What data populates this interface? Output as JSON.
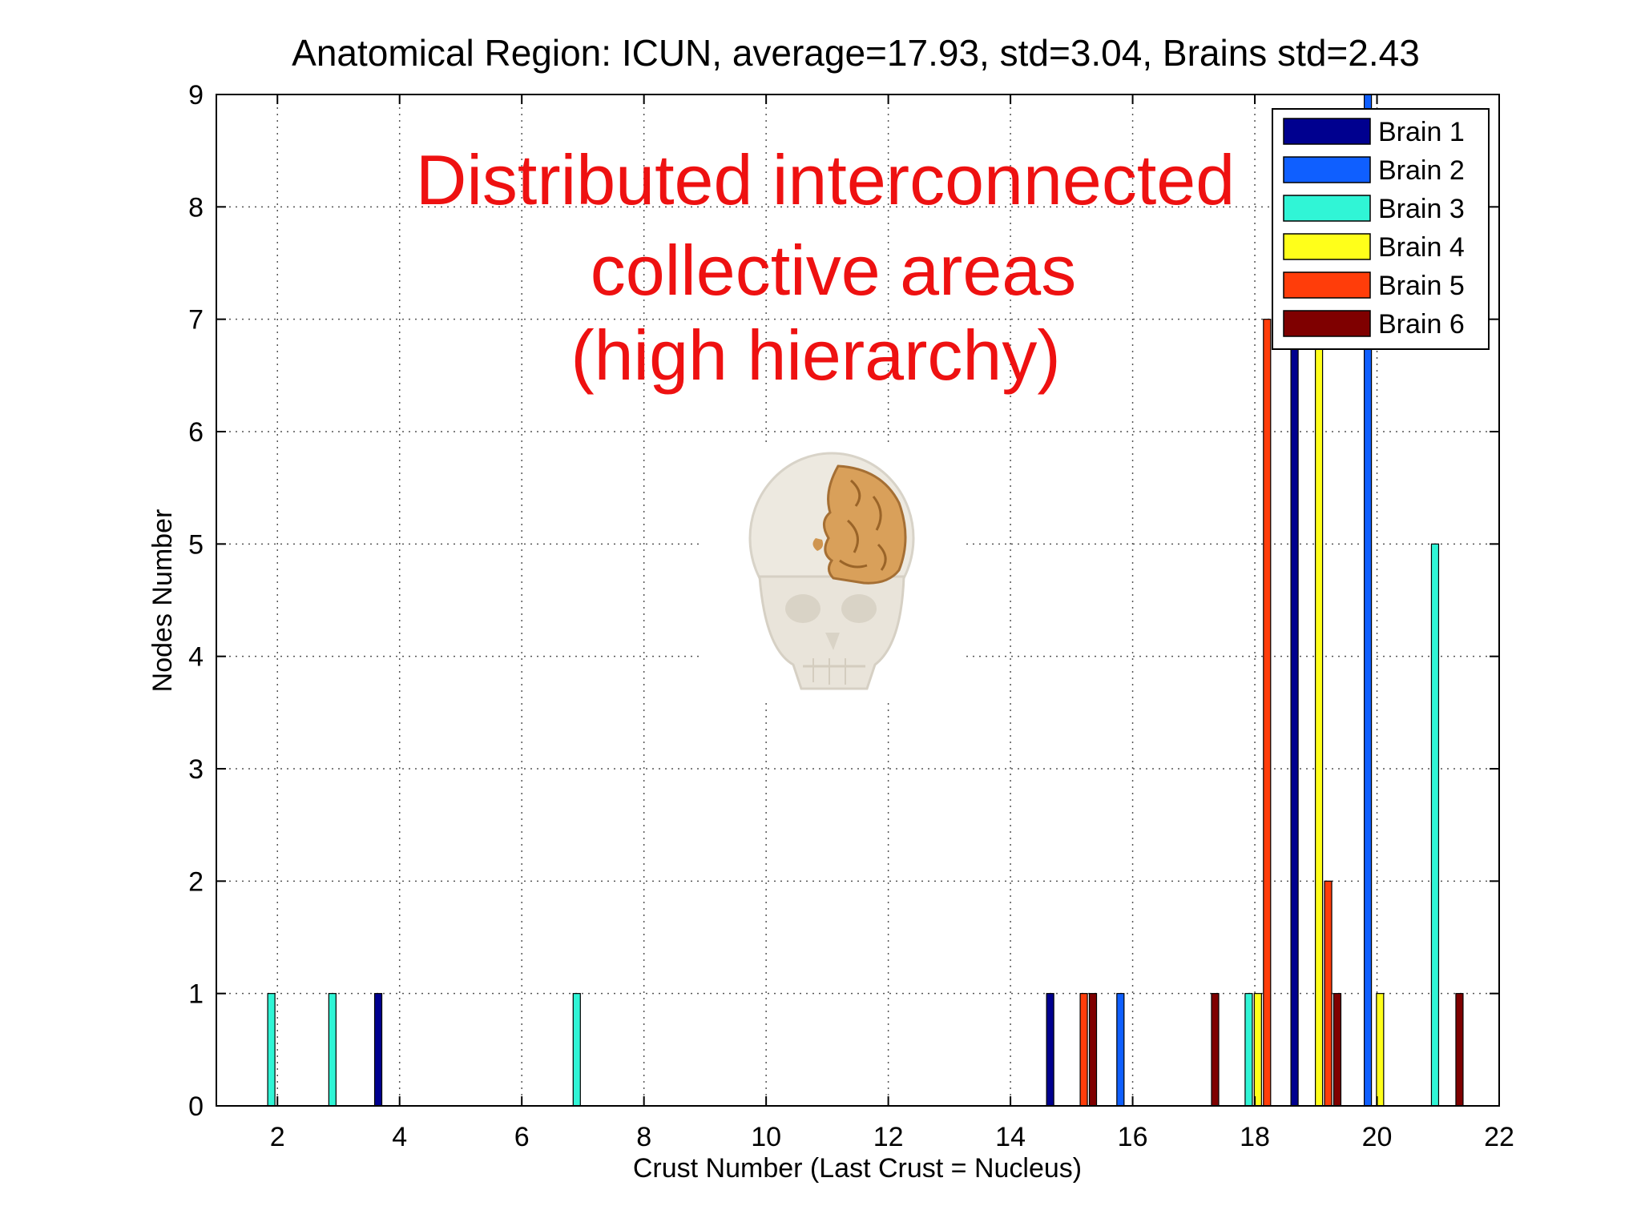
{
  "colors": {
    "overlay_text": "#ee1111",
    "grid": "#555555",
    "skull": "#ede9e0",
    "brain": "#d9a05a"
  },
  "overlay": {
    "lines": [
      "Distributed interconnected",
      "collective areas",
      "(high hierarchy)"
    ]
  },
  "icons": {
    "skull_image": "skull-with-highlighted-brain-region"
  },
  "chart_data": {
    "type": "bar",
    "title": "Anatomical Region:  ICUN, average=17.93, std=3.04, Brains std=2.43",
    "xlabel": "Crust Number (Last Crust = Nucleus)",
    "ylabel": "Nodes Number",
    "xlim": [
      1,
      22
    ],
    "ylim": [
      0,
      9
    ],
    "xticks": [
      2,
      4,
      6,
      8,
      10,
      12,
      14,
      16,
      18,
      20,
      22
    ],
    "yticks": [
      0,
      1,
      2,
      3,
      4,
      5,
      6,
      7,
      8,
      9
    ],
    "grid": true,
    "legend_position": "top-right",
    "series": [
      {
        "name": "Brain 1",
        "color": "#00008f",
        "points": [
          [
            3.65,
            1
          ],
          [
            14.65,
            1
          ],
          [
            18.65,
            7
          ]
        ]
      },
      {
        "name": "Brain 2",
        "color": "#0f5fff",
        "points": [
          [
            15.8,
            1
          ],
          [
            19.85,
            9
          ]
        ]
      },
      {
        "name": "Brain 3",
        "color": "#30f5d6",
        "points": [
          [
            1.9,
            1
          ],
          [
            2.9,
            1
          ],
          [
            6.9,
            1
          ],
          [
            17.9,
            1
          ],
          [
            20.95,
            5
          ]
        ]
      },
      {
        "name": "Brain 4",
        "color": "#ffff1a",
        "points": [
          [
            18.05,
            1
          ],
          [
            19.05,
            7
          ],
          [
            20.05,
            1
          ]
        ]
      },
      {
        "name": "Brain 5",
        "color": "#ff3d0a",
        "points": [
          [
            15.2,
            1
          ],
          [
            18.2,
            7
          ],
          [
            19.2,
            2
          ]
        ]
      },
      {
        "name": "Brain 6",
        "color": "#7f0000",
        "points": [
          [
            15.35,
            1
          ],
          [
            17.35,
            1
          ],
          [
            19.35,
            1
          ],
          [
            21.35,
            1
          ]
        ]
      }
    ]
  }
}
